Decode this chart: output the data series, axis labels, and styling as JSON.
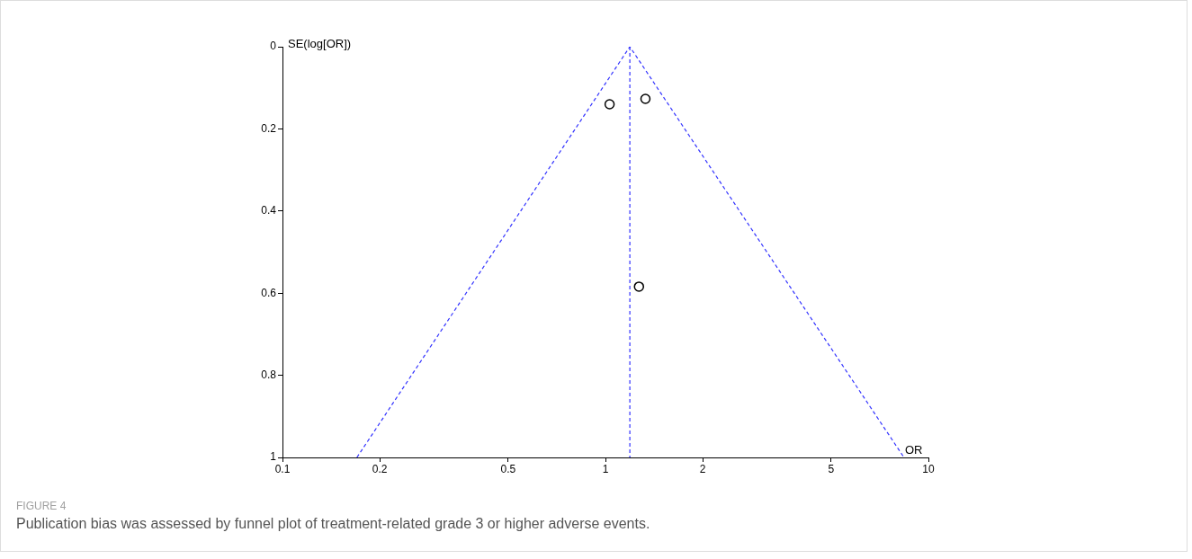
{
  "chart_data": {
    "type": "scatter",
    "xlabel": "OR",
    "ylabel": "SE(log[OR])",
    "annotations": [
      "FIGURE 4",
      "Publication bias was assessed by funnel plot of treatment-related grade 3 or higher adverse events."
    ],
    "log": "x",
    "xlim": [
      0.1,
      10
    ],
    "xticks": [
      0.1,
      0.2,
      0.5,
      1,
      2,
      5,
      10
    ],
    "ylim": [
      1,
      0
    ],
    "yticks": [
      0,
      0.2,
      0.4,
      0.6,
      0.8,
      1
    ],
    "grid": false,
    "legend": false,
    "series": [
      {
        "type": "scatter",
        "color": "#000000",
        "marker": "circle",
        "x": [
          1.03,
          1.33,
          1.27
        ],
        "values": [
          0.14,
          0.127,
          0.584
        ]
      },
      {
        "type": "line",
        "color": "#3333ff",
        "marker": "none",
        "line_style": "dashed",
        "x": [
          0.17,
          1.19,
          8.4
        ],
        "values": [
          1,
          0,
          1
        ]
      }
    ],
    "ref_lines": [
      {
        "axis": "x",
        "value": 1.19,
        "color": "#3333ff",
        "line_style": "dashed"
      }
    ]
  }
}
